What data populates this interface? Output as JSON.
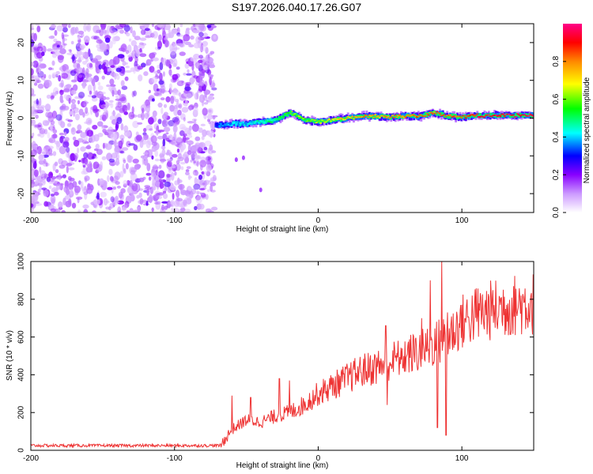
{
  "figure_title": "S197.2026.040.17.26.G07",
  "chart_data": [
    {
      "type": "heatmap",
      "title": "S197.2026.040.17.26.G07",
      "xlabel": "Height of straight line (km)",
      "ylabel": "Frequency (Hz)",
      "xlim": [
        -200,
        150
      ],
      "ylim": [
        -25,
        25
      ],
      "x_ticks": [
        -200,
        -100,
        0,
        100
      ],
      "y_ticks": [
        -20,
        -10,
        0,
        10,
        20
      ],
      "colorbar": {
        "label": "Normalized spectral amplitude",
        "range": [
          0,
          1
        ],
        "ticks": [
          0.0,
          0.2,
          0.4,
          0.6,
          0.8
        ],
        "colors": [
          "#ffffff",
          "#cc99ff",
          "#8800ff",
          "#0000ff",
          "#00ffff",
          "#00ff00",
          "#ffff00",
          "#ff8800",
          "#ff0000",
          "#ff0088"
        ]
      },
      "regions": [
        {
          "name": "noise",
          "x_range": [
            -200,
            -72
          ],
          "freq_range": [
            -25,
            25
          ],
          "amplitude": "0.0-0.3"
        },
        {
          "name": "signal",
          "x_range": [
            -72,
            150
          ],
          "freq_center": [
            -2,
            0.7
          ],
          "amplitude": "0.3-1.0"
        }
      ],
      "signal_trace": {
        "x": [
          -72,
          -60,
          -50,
          -40,
          -30,
          -20,
          -10,
          0,
          10,
          20,
          30,
          40,
          50,
          60,
          70,
          80,
          90,
          100,
          110,
          120,
          130,
          140,
          150
        ],
        "freq": [
          -2,
          -1.5,
          -1.5,
          -1,
          -0.5,
          1.5,
          -0.5,
          -1,
          -0.5,
          0,
          0.5,
          0.5,
          0.3,
          0.5,
          0.5,
          1.5,
          0.5,
          0.3,
          0.7,
          0.7,
          0.7,
          0.7,
          0.7
        ],
        "amplitude": [
          0.3,
          0.4,
          0.4,
          0.45,
          0.5,
          0.6,
          0.6,
          0.65,
          0.7,
          0.75,
          0.8,
          0.75,
          0.8,
          0.8,
          0.85,
          0.8,
          0.85,
          0.85,
          0.9,
          0.95,
          0.95,
          0.95,
          0.95
        ]
      }
    },
    {
      "type": "line",
      "xlabel": "Height of straight line (km)",
      "ylabel": "SNR (10 * v/v)",
      "xlim": [
        -200,
        150
      ],
      "ylim": [
        0,
        1000
      ],
      "x_ticks": [
        -200,
        -100,
        0,
        100
      ],
      "y_ticks": [
        0,
        200,
        400,
        600,
        800,
        1000
      ],
      "color": "#ee3333",
      "series": [
        {
          "name": "SNR",
          "envelope_x": [
            -200,
            -110,
            -68,
            -60,
            -50,
            -40,
            -30,
            -20,
            -10,
            0,
            10,
            20,
            30,
            40,
            50,
            60,
            70,
            80,
            90,
            100,
            110,
            120,
            130,
            140,
            150
          ],
          "envelope_y": [
            25,
            25,
            25,
            110,
            160,
            150,
            180,
            200,
            240,
            300,
            340,
            380,
            420,
            440,
            470,
            500,
            520,
            560,
            600,
            680,
            720,
            740,
            760,
            770,
            780
          ],
          "spikes": [
            {
              "x": -60,
              "y": 290
            },
            {
              "x": -47,
              "y": 280
            },
            {
              "x": -27,
              "y": 380
            },
            {
              "x": -20,
              "y": 370
            },
            {
              "x": 47,
              "y": 660
            },
            {
              "x": 48,
              "y": 240
            },
            {
              "x": 58,
              "y": 480
            },
            {
              "x": 72,
              "y": 700
            },
            {
              "x": 78,
              "y": 900
            },
            {
              "x": 83,
              "y": 120
            },
            {
              "x": 86,
              "y": 1000
            },
            {
              "x": 89,
              "y": 80
            },
            {
              "x": 90,
              "y": 730
            }
          ]
        }
      ]
    }
  ]
}
